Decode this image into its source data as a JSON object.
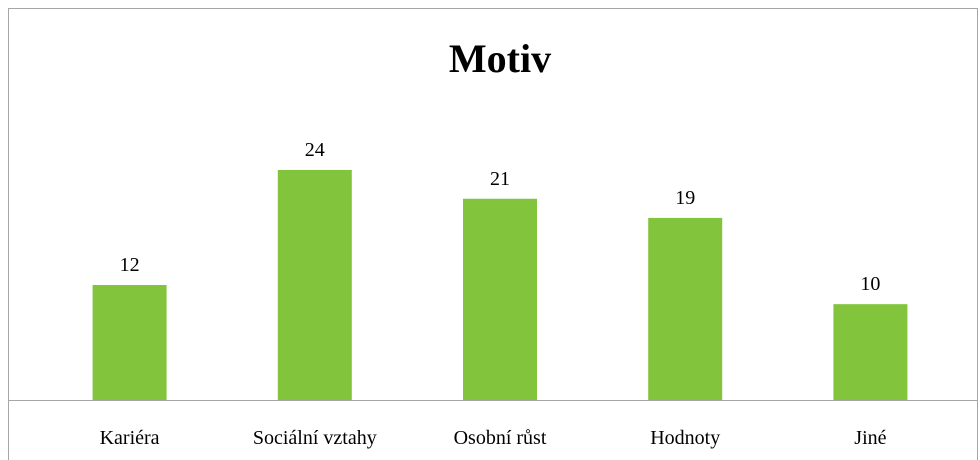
{
  "chart_data": {
    "type": "bar",
    "title": "Motiv",
    "categories": [
      "Kariéra",
      "Sociální vztahy",
      "Osobní růst",
      "Hodnoty",
      "Jiné"
    ],
    "values": [
      12,
      24,
      21,
      19,
      10
    ],
    "color": "#82c43c"
  }
}
